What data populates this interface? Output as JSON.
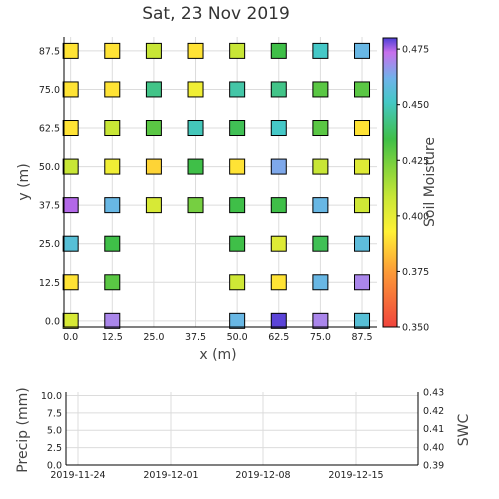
{
  "chart_data": [
    {
      "type": "heatmap",
      "title": "Sat, 23 Nov 2019",
      "xlabel": "x (m)",
      "ylabel": "y (m)",
      "x_ticks": [
        "0.0",
        "12.5",
        "25.0",
        "37.5",
        "50.0",
        "62.5",
        "75.0",
        "87.5"
      ],
      "y_ticks": [
        "0.0",
        "12.5",
        "25.0",
        "37.5",
        "50.0",
        "62.5",
        "75.0",
        "87.5"
      ],
      "xlim": [
        -2,
        92
      ],
      "ylim": [
        -2,
        92
      ],
      "grid": true,
      "colorbar": {
        "label": "Soil Moisture",
        "range": [
          0.35,
          0.48
        ],
        "ticks": [
          "0.350",
          "0.375",
          "0.400",
          "0.425",
          "0.450",
          "0.475"
        ]
      },
      "points": [
        {
          "x": 0,
          "y": 87.5,
          "value": 0.39
        },
        {
          "x": 12.5,
          "y": 87.5,
          "value": 0.39
        },
        {
          "x": 25,
          "y": 87.5,
          "value": 0.408
        },
        {
          "x": 37.5,
          "y": 87.5,
          "value": 0.39
        },
        {
          "x": 50,
          "y": 87.5,
          "value": 0.408
        },
        {
          "x": 62.5,
          "y": 87.5,
          "value": 0.418
        },
        {
          "x": 75,
          "y": 87.5,
          "value": 0.438
        },
        {
          "x": 87.5,
          "y": 87.5,
          "value": 0.448
        },
        {
          "x": 0,
          "y": 75,
          "value": 0.39
        },
        {
          "x": 12.5,
          "y": 75,
          "value": 0.39
        },
        {
          "x": 25,
          "y": 75,
          "value": 0.428
        },
        {
          "x": 37.5,
          "y": 75,
          "value": 0.397
        },
        {
          "x": 50,
          "y": 75,
          "value": 0.433
        },
        {
          "x": 62.5,
          "y": 75,
          "value": 0.428
        },
        {
          "x": 75,
          "y": 75,
          "value": 0.416
        },
        {
          "x": 87.5,
          "y": 75,
          "value": 0.416
        },
        {
          "x": 0,
          "y": 62.5,
          "value": 0.39
        },
        {
          "x": 12.5,
          "y": 62.5,
          "value": 0.408
        },
        {
          "x": 25,
          "y": 62.5,
          "value": 0.416
        },
        {
          "x": 37.5,
          "y": 62.5,
          "value": 0.436
        },
        {
          "x": 50,
          "y": 62.5,
          "value": 0.42
        },
        {
          "x": 62.5,
          "y": 62.5,
          "value": 0.438
        },
        {
          "x": 75,
          "y": 62.5,
          "value": 0.416
        },
        {
          "x": 87.5,
          "y": 62.5,
          "value": 0.39
        },
        {
          "x": 0,
          "y": 50,
          "value": 0.408
        },
        {
          "x": 12.5,
          "y": 50,
          "value": 0.397
        },
        {
          "x": 25,
          "y": 50,
          "value": 0.387
        },
        {
          "x": 37.5,
          "y": 50,
          "value": 0.418
        },
        {
          "x": 50,
          "y": 50,
          "value": 0.39
        },
        {
          "x": 62.5,
          "y": 50,
          "value": 0.452
        },
        {
          "x": 75,
          "y": 50,
          "value": 0.408
        },
        {
          "x": 87.5,
          "y": 50,
          "value": 0.402
        },
        {
          "x": 0,
          "y": 37.5,
          "value": 0.465
        },
        {
          "x": 12.5,
          "y": 37.5,
          "value": 0.448
        },
        {
          "x": 25,
          "y": 37.5,
          "value": 0.404
        },
        {
          "x": 37.5,
          "y": 37.5,
          "value": 0.414
        },
        {
          "x": 50,
          "y": 37.5,
          "value": 0.418
        },
        {
          "x": 62.5,
          "y": 37.5,
          "value": 0.418
        },
        {
          "x": 75,
          "y": 37.5,
          "value": 0.448
        },
        {
          "x": 87.5,
          "y": 37.5,
          "value": 0.406
        },
        {
          "x": 0,
          "y": 25,
          "value": 0.443
        },
        {
          "x": 12.5,
          "y": 25,
          "value": 0.418
        },
        {
          "x": 50,
          "y": 25,
          "value": 0.418
        },
        {
          "x": 62.5,
          "y": 25,
          "value": 0.402
        },
        {
          "x": 75,
          "y": 25,
          "value": 0.42
        },
        {
          "x": 87.5,
          "y": 25,
          "value": 0.445
        },
        {
          "x": 0,
          "y": 12.5,
          "value": 0.39
        },
        {
          "x": 12.5,
          "y": 12.5,
          "value": 0.416
        },
        {
          "x": 50,
          "y": 12.5,
          "value": 0.406
        },
        {
          "x": 62.5,
          "y": 12.5,
          "value": 0.39
        },
        {
          "x": 75,
          "y": 12.5,
          "value": 0.448
        },
        {
          "x": 87.5,
          "y": 12.5,
          "value": 0.458
        },
        {
          "x": 0,
          "y": 0,
          "value": 0.404
        },
        {
          "x": 12.5,
          "y": 0,
          "value": 0.458
        },
        {
          "x": 50,
          "y": 0,
          "value": 0.448
        },
        {
          "x": 62.5,
          "y": 0,
          "value": 0.478
        },
        {
          "x": 75,
          "y": 0,
          "value": 0.458
        },
        {
          "x": 87.5,
          "y": 0,
          "value": 0.443
        }
      ]
    },
    {
      "type": "line",
      "xlabel": "",
      "ylabel": "Precip (mm)",
      "y2label": "SWC",
      "x_ticks": [
        "2019-11-24",
        "2019-12-01",
        "2019-12-08",
        "2019-12-15"
      ],
      "y_ticks": [
        "0.0",
        "2.5",
        "5.0",
        "7.5",
        "10.0"
      ],
      "ylim": [
        0,
        10.5
      ],
      "y2_ticks": [
        "0.39",
        "0.40",
        "0.41",
        "0.42",
        "0.43"
      ],
      "y2lim": [
        0.39,
        0.43
      ],
      "grid": true,
      "series": []
    }
  ]
}
